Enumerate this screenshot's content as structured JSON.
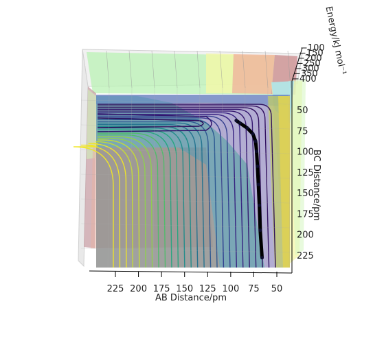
{
  "chart_data": {
    "type": "surface-3d-with-contours",
    "title": "",
    "x_axis": {
      "label": "AB Distance/pm",
      "ticks": [
        "225",
        "200",
        "175",
        "150",
        "125",
        "100",
        "75",
        "50"
      ],
      "range": [
        35,
        255
      ]
    },
    "y_axis": {
      "label": "BC Distance/pm",
      "ticks": [
        "50",
        "75",
        "100",
        "125",
        "150",
        "175",
        "200",
        "225"
      ],
      "range": [
        35,
        245
      ]
    },
    "z_axis": {
      "label": "Energy/kJ mol⁻¹",
      "ticks": [
        "−100",
        "−150",
        "−200",
        "−250",
        "−300",
        "−350",
        "−400"
      ]
    },
    "colormap": "viridis (contours) over filled energy surface",
    "trajectory": {
      "color": "#000000",
      "points_pm": [
        [
          66,
          228
        ],
        [
          68,
          195
        ],
        [
          69,
          165
        ],
        [
          70,
          140
        ],
        [
          71,
          118
        ],
        [
          72,
          100
        ],
        [
          73,
          88
        ],
        [
          76,
          79
        ],
        [
          82,
          72
        ],
        [
          90,
          66
        ],
        [
          94,
          63
        ]
      ]
    }
  }
}
